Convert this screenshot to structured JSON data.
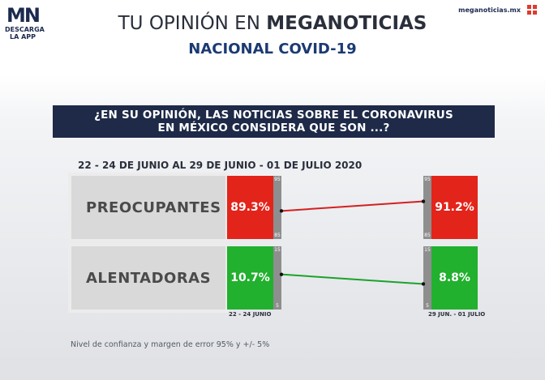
{
  "header": {
    "logo_text": "MN",
    "logo_sub_line1": "DESCARGA",
    "logo_sub_line2": "LA APP",
    "site": "meganoticias.mx",
    "title_light": "TU OPINIÓN EN ",
    "title_bold": "MEGANOTICIAS",
    "subtitle": "NACIONAL COVID-19"
  },
  "question": {
    "line1": "¿EN SU OPINIÓN, LAS NOTICIAS SOBRE EL CORONAVIRUS",
    "line2": "EN MÉXICO CONSIDERA QUE SON ...?"
  },
  "date_range": "22 - 24 DE JUNIO AL 29 DE JUNIO - 01 DE JULIO 2020",
  "footnote": "Nivel de confianza y margen de error 95% y +/- 5%",
  "chart_data": {
    "type": "line",
    "periods": [
      "22 - 24 JUNIO",
      "29 JUN. - 01 JULIO"
    ],
    "series": [
      {
        "name": "PREOCUPANTES",
        "values": [
          89.3,
          91.2
        ],
        "labels": [
          "89.3%",
          "91.2%"
        ],
        "scale": [
          85,
          95
        ],
        "scale_labels": [
          "95",
          "85"
        ],
        "color": "#e3241b",
        "line_color": "#d42020"
      },
      {
        "name": "ALENTADORAS",
        "values": [
          10.7,
          8.8
        ],
        "labels": [
          "10.7%",
          "8.8%"
        ],
        "scale": [
          5,
          15
        ],
        "scale_labels": [
          "15",
          "5"
        ],
        "color": "#22b02f",
        "line_color": "#1aa32a"
      }
    ]
  },
  "colors": {
    "navy": "#1e2a48",
    "red": "#e3241b",
    "green": "#22b02f",
    "scale_gray": "#8e8e8e"
  }
}
